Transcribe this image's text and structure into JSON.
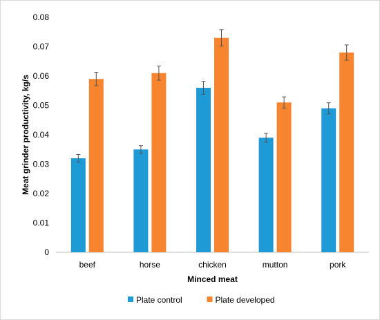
{
  "chart_data": {
    "type": "bar",
    "categories": [
      "beef",
      "horse",
      "chicken",
      "mutton",
      "pork"
    ],
    "series": [
      {
        "name": "Plate control",
        "color": "#1E9AD6",
        "values": [
          0.032,
          0.035,
          0.056,
          0.039,
          0.049
        ],
        "errors": [
          0.0013,
          0.0013,
          0.0022,
          0.0015,
          0.0019
        ]
      },
      {
        "name": "Plate developed",
        "color": "#F7852F",
        "values": [
          0.059,
          0.061,
          0.073,
          0.051,
          0.068
        ],
        "errors": [
          0.0023,
          0.0024,
          0.0028,
          0.0019,
          0.0026
        ]
      }
    ],
    "xlabel": "Minced meat",
    "ylabel": "Meat grinder productivity, kg/s",
    "ylim": [
      0,
      0.08
    ],
    "yticks": [
      "0",
      "0.01",
      "0.02",
      "0.03",
      "0.04",
      "0.05",
      "0.06",
      "0.07",
      "0.08"
    ],
    "grid": false,
    "legend_position": "bottom"
  }
}
